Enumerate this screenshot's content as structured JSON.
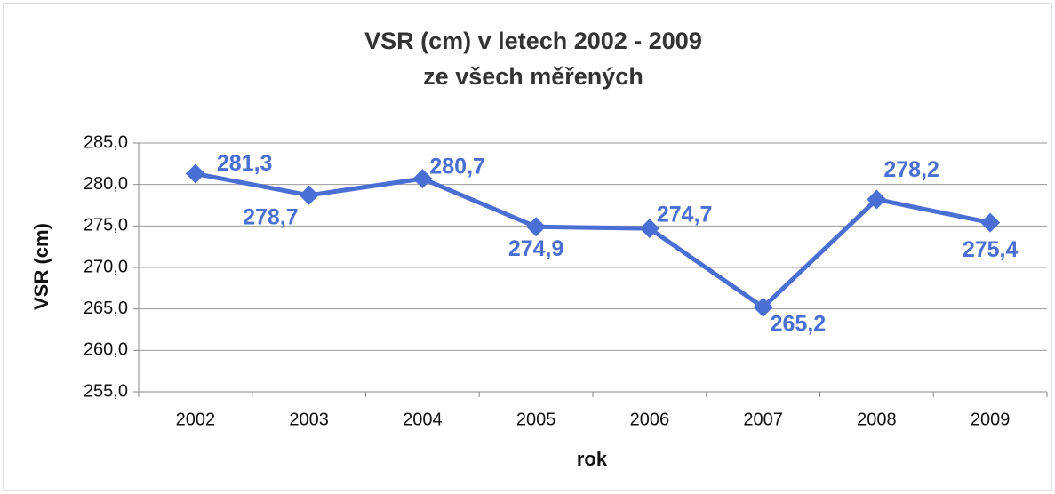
{
  "chart_data": {
    "type": "line",
    "title": "VSR (cm) v letech 2002 - 2009",
    "subtitle": "ze všech měřených",
    "y_label": "VSR (cm)",
    "x_label": "rok",
    "categories": [
      "2002",
      "2003",
      "2004",
      "2005",
      "2006",
      "2007",
      "2008",
      "2009"
    ],
    "series": [
      {
        "name": "VSR",
        "color": "#4a6fd4",
        "values": [
          281.3,
          278.7,
          280.7,
          274.9,
          274.7,
          265.2,
          278.2,
          275.4
        ],
        "value_labels": [
          "281,3",
          "278,7",
          "280,7",
          "274,9",
          "274,7",
          "265,2",
          "278,2",
          "275,4"
        ]
      }
    ],
    "ylim": [
      255,
      285
    ],
    "yticks": [
      {
        "value": 255,
        "label": "255,0"
      },
      {
        "value": 260,
        "label": "260,0"
      },
      {
        "value": 265,
        "label": "265,0"
      },
      {
        "value": 270,
        "label": "270,0"
      },
      {
        "value": 275,
        "label": "275,0"
      },
      {
        "value": 280,
        "label": "280,0"
      },
      {
        "value": 285,
        "label": "285,0"
      }
    ],
    "grid": true
  }
}
